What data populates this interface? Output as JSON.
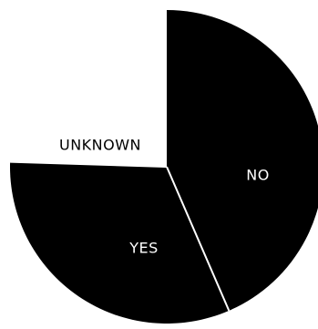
{
  "chart_data": {
    "type": "pie",
    "title": "",
    "start_angle_deg": 0,
    "direction": "clockwise",
    "slices": [
      {
        "label": "NO",
        "value": 43.5,
        "color": "#000000",
        "label_color": "#ffffff"
      },
      {
        "label": "YES",
        "value": 32.0,
        "color": "#000000",
        "label_color": "#ffffff"
      },
      {
        "label": "UNKNOWN",
        "value": 24.5,
        "color": "#ffffff",
        "label_color": "#000000"
      }
    ],
    "separator_color": "#ffffff"
  }
}
